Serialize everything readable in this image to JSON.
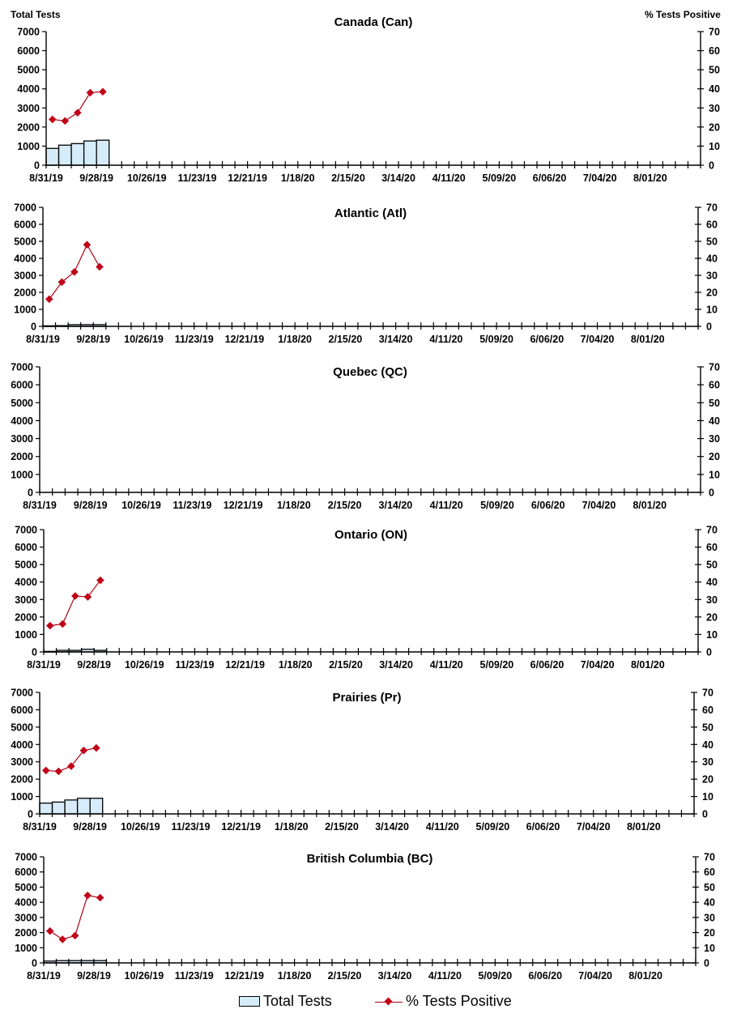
{
  "axis_titles": {
    "left": "Total Tests",
    "right": "% Tests Positive"
  },
  "legend": {
    "bar_label": "Total Tests",
    "line_label": "% Tests Positive"
  },
  "colors": {
    "bar_fill": "#d6ecfa",
    "bar_stroke": "#000000",
    "line": "#b00010",
    "marker": "#c00018",
    "axis": "#000000"
  },
  "chart_data": [
    {
      "type": "bar+line",
      "title": "Canada (Can)",
      "xlabel": "",
      "ylabel": "Total Tests",
      "y2label": "% Tests Positive",
      "ylim": [
        0,
        7000
      ],
      "y2lim": [
        0,
        70
      ],
      "yticks": [
        0,
        1000,
        2000,
        3000,
        4000,
        5000,
        6000,
        7000
      ],
      "y2ticks": [
        0,
        10,
        20,
        30,
        40,
        50,
        60,
        70
      ],
      "xtick_labels": [
        "8/31/19",
        "9/28/19",
        "10/26/19",
        "11/23/19",
        "12/21/19",
        "1/18/20",
        "2/15/20",
        "3/14/20",
        "4/11/20",
        "5/09/20",
        "6/06/20",
        "7/04/20",
        "8/01/20"
      ],
      "n_weeks": 52,
      "series": [
        {
          "name": "Total Tests",
          "type": "bar",
          "axis": "left",
          "values": [
            880,
            1050,
            1130,
            1270,
            1310
          ]
        },
        {
          "name": "% Tests Positive",
          "type": "line",
          "axis": "right",
          "values": [
            24.0,
            23.2,
            27.5,
            38.0,
            38.5
          ]
        }
      ],
      "grid": false,
      "legend_position": "bottom"
    },
    {
      "type": "bar+line",
      "title": "Atlantic (Atl)",
      "xlabel": "",
      "ylabel": "Total Tests",
      "y2label": "% Tests Positive",
      "ylim": [
        0,
        7000
      ],
      "y2lim": [
        0,
        70
      ],
      "yticks": [
        0,
        1000,
        2000,
        3000,
        4000,
        5000,
        6000,
        7000
      ],
      "y2ticks": [
        0,
        10,
        20,
        30,
        40,
        50,
        60,
        70
      ],
      "xtick_labels": [
        "8/31/19",
        "9/28/19",
        "10/26/19",
        "11/23/19",
        "12/21/19",
        "1/18/20",
        "2/15/20",
        "3/14/20",
        "4/11/20",
        "5/09/20",
        "6/06/20",
        "7/04/20",
        "8/01/20"
      ],
      "n_weeks": 52,
      "series": [
        {
          "name": "Total Tests",
          "type": "bar",
          "axis": "left",
          "values": [
            30,
            40,
            100,
            100,
            100
          ]
        },
        {
          "name": "% Tests Positive",
          "type": "line",
          "axis": "right",
          "values": [
            16.0,
            26.0,
            32.0,
            48.0,
            35.0
          ]
        }
      ],
      "grid": false,
      "legend_position": "bottom"
    },
    {
      "type": "bar+line",
      "title": "Quebec (QC)",
      "xlabel": "",
      "ylabel": "Total Tests",
      "y2label": "% Tests Positive",
      "ylim": [
        0,
        7000
      ],
      "y2lim": [
        0,
        70
      ],
      "yticks": [
        0,
        1000,
        2000,
        3000,
        4000,
        5000,
        6000,
        7000
      ],
      "y2ticks": [
        0,
        10,
        20,
        30,
        40,
        50,
        60,
        70
      ],
      "xtick_labels": [
        "8/31/19",
        "9/28/19",
        "10/26/19",
        "11/23/19",
        "12/21/19",
        "1/18/20",
        "2/15/20",
        "3/14/20",
        "4/11/20",
        "5/09/20",
        "6/06/20",
        "7/04/20",
        "8/01/20"
      ],
      "n_weeks": 52,
      "series": [
        {
          "name": "Total Tests",
          "type": "bar",
          "axis": "left",
          "values": []
        },
        {
          "name": "% Tests Positive",
          "type": "line",
          "axis": "right",
          "values": []
        }
      ],
      "grid": false,
      "legend_position": "bottom"
    },
    {
      "type": "bar+line",
      "title": "Ontario (ON)",
      "xlabel": "",
      "ylabel": "Total Tests",
      "y2label": "% Tests Positive",
      "ylim": [
        0,
        7000
      ],
      "y2lim": [
        0,
        70
      ],
      "yticks": [
        0,
        1000,
        2000,
        3000,
        4000,
        5000,
        6000,
        7000
      ],
      "y2ticks": [
        0,
        10,
        20,
        30,
        40,
        50,
        60,
        70
      ],
      "xtick_labels": [
        "8/31/19",
        "9/28/19",
        "10/26/19",
        "11/23/19",
        "12/21/19",
        "1/18/20",
        "2/15/20",
        "3/14/20",
        "4/11/20",
        "5/09/20",
        "6/06/20",
        "7/04/20",
        "8/01/20"
      ],
      "n_weeks": 52,
      "series": [
        {
          "name": "Total Tests",
          "type": "bar",
          "axis": "left",
          "values": [
            30,
            90,
            90,
            150,
            90
          ]
        },
        {
          "name": "% Tests Positive",
          "type": "line",
          "axis": "right",
          "values": [
            15.0,
            16.0,
            32.0,
            31.5,
            41.0
          ]
        }
      ],
      "grid": false,
      "legend_position": "bottom"
    },
    {
      "type": "bar+line",
      "title": "Prairies (Pr)",
      "xlabel": "",
      "ylabel": "Total Tests",
      "y2label": "% Tests Positive",
      "ylim": [
        0,
        7000
      ],
      "y2lim": [
        0,
        70
      ],
      "yticks": [
        0,
        1000,
        2000,
        3000,
        4000,
        5000,
        6000,
        7000
      ],
      "y2ticks": [
        0,
        10,
        20,
        30,
        40,
        50,
        60,
        70
      ],
      "xtick_labels": [
        "8/31/19",
        "9/28/19",
        "10/26/19",
        "11/23/19",
        "12/21/19",
        "1/18/20",
        "2/15/20",
        "3/14/20",
        "4/11/20",
        "5/09/20",
        "6/06/20",
        "7/04/20",
        "8/01/20"
      ],
      "n_weeks": 52,
      "series": [
        {
          "name": "Total Tests",
          "type": "bar",
          "axis": "left",
          "values": [
            620,
            680,
            800,
            900,
            900
          ]
        },
        {
          "name": "% Tests Positive",
          "type": "line",
          "axis": "right",
          "values": [
            25.0,
            24.5,
            27.5,
            36.5,
            38.0
          ]
        }
      ],
      "grid": false,
      "legend_position": "bottom"
    },
    {
      "type": "bar+line",
      "title": "British Columbia (BC)",
      "xlabel": "",
      "ylabel": "Total Tests",
      "y2label": "% Tests Positive",
      "ylim": [
        0,
        7000
      ],
      "y2lim": [
        0,
        70
      ],
      "yticks": [
        0,
        1000,
        2000,
        3000,
        4000,
        5000,
        6000,
        7000
      ],
      "y2ticks": [
        0,
        10,
        20,
        30,
        40,
        50,
        60,
        70
      ],
      "xtick_labels": [
        "8/31/19",
        "9/28/19",
        "10/26/19",
        "11/23/19",
        "12/21/19",
        "1/18/20",
        "2/15/20",
        "3/14/20",
        "4/11/20",
        "5/09/20",
        "6/06/20",
        "7/04/20",
        "8/01/20"
      ],
      "n_weeks": 52,
      "series": [
        {
          "name": "Total Tests",
          "type": "bar",
          "axis": "left",
          "values": [
            120,
            150,
            150,
            150,
            150
          ]
        },
        {
          "name": "% Tests Positive",
          "type": "line",
          "axis": "right",
          "values": [
            21.0,
            15.5,
            18.0,
            44.5,
            43.0
          ]
        }
      ],
      "grid": false,
      "legend_position": "bottom"
    }
  ]
}
